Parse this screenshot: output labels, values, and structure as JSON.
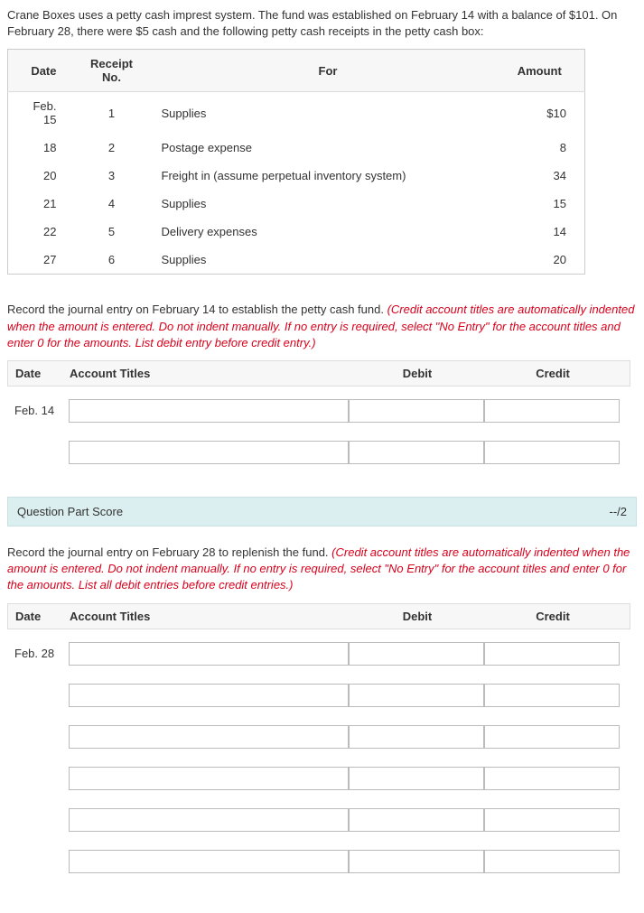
{
  "intro": "Crane Boxes uses a petty cash imprest system. The fund was established on February 14 with a balance of $101. On February 28, there were $5 cash and the following petty cash receipts in the petty cash box:",
  "receiptsHeader": {
    "date": "Date",
    "receipt": "Receipt No.",
    "for": "For",
    "amount": "Amount"
  },
  "receipts": [
    {
      "date": "Feb. 15",
      "no": "1",
      "for": "Supplies",
      "amount": "$10"
    },
    {
      "date": "18",
      "no": "2",
      "for": "Postage expense",
      "amount": "8"
    },
    {
      "date": "20",
      "no": "3",
      "for": "Freight in (assume perpetual inventory system)",
      "amount": "34"
    },
    {
      "date": "21",
      "no": "4",
      "for": "Supplies",
      "amount": "15"
    },
    {
      "date": "22",
      "no": "5",
      "for": "Delivery expenses",
      "amount": "14"
    },
    {
      "date": "27",
      "no": "6",
      "for": "Supplies",
      "amount": "20"
    }
  ],
  "instr1": {
    "black": "Record the journal entry on February 14 to establish the petty cash fund. ",
    "red": "(Credit account titles are automatically indented when the amount is entered. Do not indent manually. If no entry is required, select \"No Entry\" for the account titles and enter 0 for the amounts. List debit entry before credit entry.)"
  },
  "journalHeader": {
    "date": "Date",
    "titles": "Account Titles",
    "debit": "Debit",
    "credit": "Credit"
  },
  "journal1": {
    "date": "Feb. 14",
    "rows": 2
  },
  "scoreLabel": "Question Part Score",
  "scoreValue": "--/2",
  "instr2": {
    "black": "Record the journal entry on February 28 to replenish the fund. ",
    "red": "(Credit account titles are automatically indented when the amount is entered. Do not indent manually. If no entry is required, select \"No Entry\" for the account titles and enter 0 for the amounts. List all debit entries before credit entries.)"
  },
  "journal2": {
    "date": "Feb. 28",
    "rows": 6
  }
}
